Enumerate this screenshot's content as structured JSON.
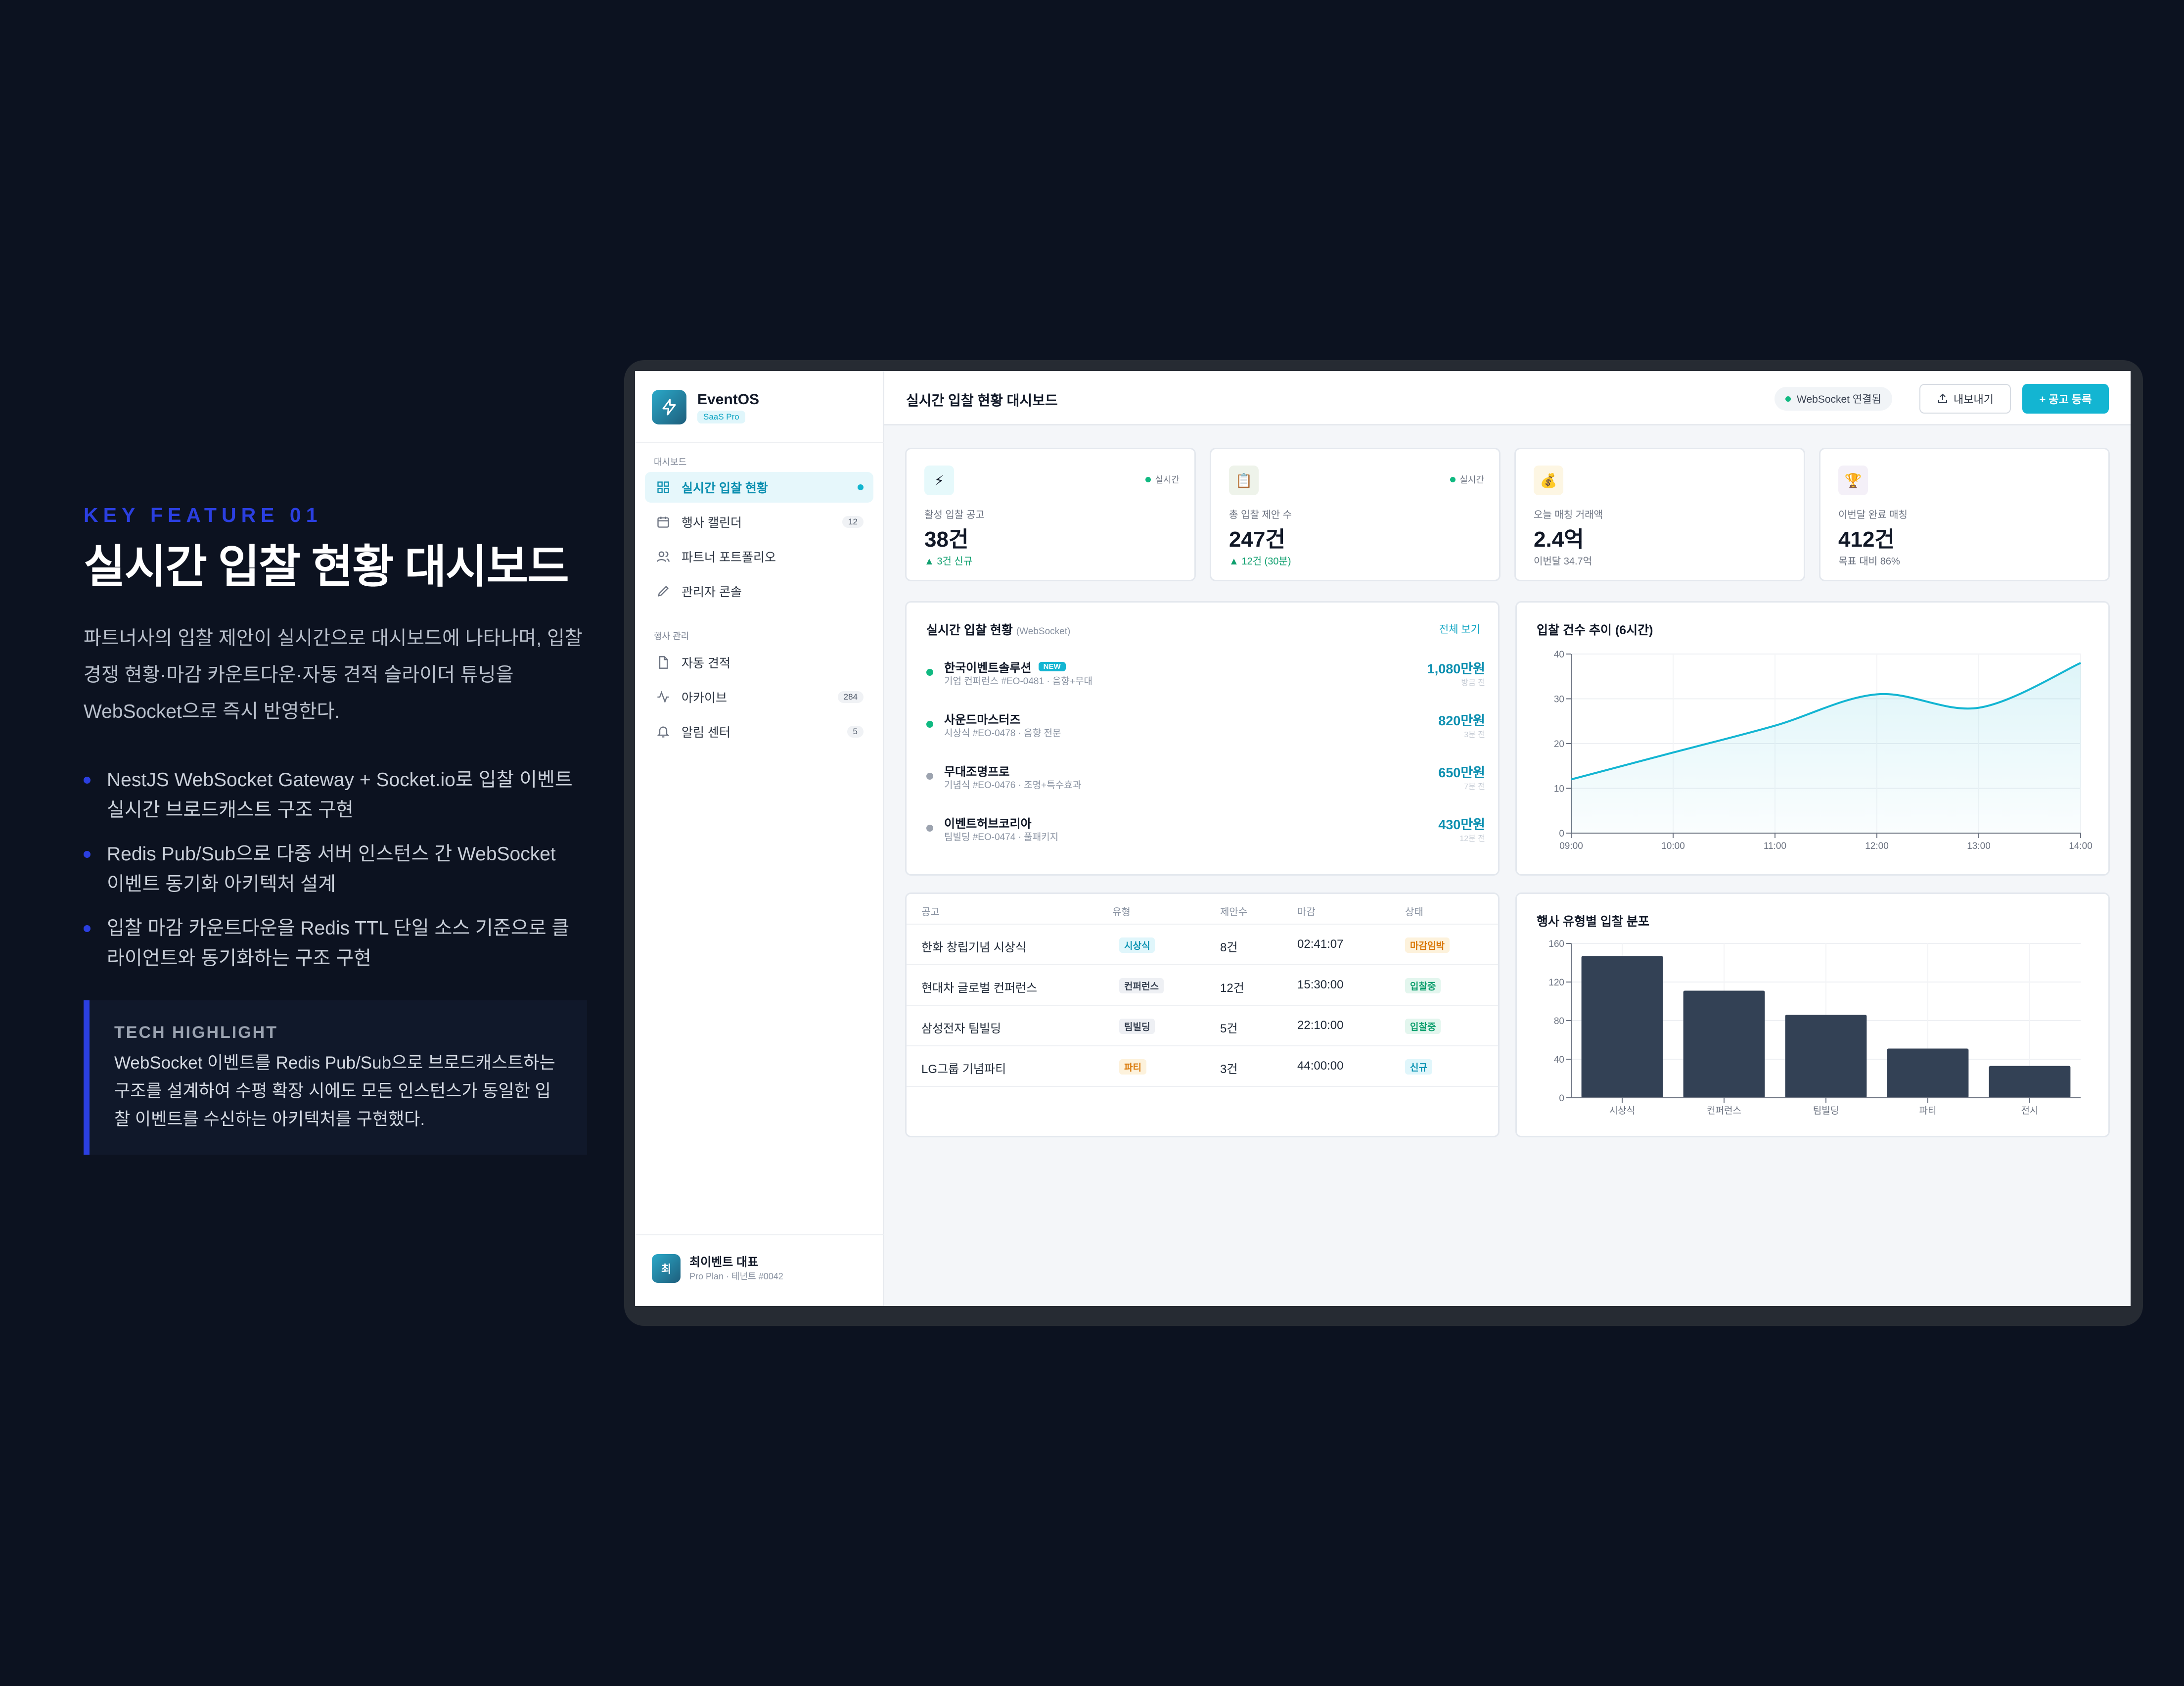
{
  "presentation": {
    "kicker": "KEY FEATURE 01",
    "title": "실시간 입찰 현황 대시보드",
    "description": "파트너사의 입찰 제안이 실시간으로 대시보드에 나타나며, 입찰 경쟁 현황·마감 카운트다운·자동 견적 슬라이더 튜닝을 WebSocket으로 즉시 반영한다.",
    "bullets": [
      "NestJS WebSocket Gateway + Socket.io로 입찰 이벤트 실시간 브로드캐스트 구조 구현",
      "Redis Pub/Sub으로 다중 서버 인스턴스 간 WebSocket 이벤트 동기화 아키텍처 설계",
      "입찰 마감 카운트다운을 Redis TTL 단일 소스 기준으로 클라이언트와 동기화하는 구조 구현"
    ],
    "highlight": {
      "title": "TECH HIGHLIGHT",
      "text": "WebSocket 이벤트를 Redis Pub/Sub으로 브로드캐스트하는 구조를 설계하여 수평 확장 시에도 모든 인스턴스가 동일한 입찰 이벤트를 수신하는 아키텍처를 구현했다."
    }
  },
  "app": {
    "name": "EventOS",
    "plan_badge": "SaaS Pro",
    "sidebar": {
      "section1": "대시보드",
      "section2": "행사 관리",
      "items": [
        {
          "label": "실시간 입찰 현황",
          "icon": "grid-icon",
          "active": true
        },
        {
          "label": "행사 캘린더",
          "icon": "calendar-icon",
          "count": "12"
        },
        {
          "label": "파트너 포트폴리오",
          "icon": "users-icon"
        },
        {
          "label": "관리자 콘솔",
          "icon": "pen-icon"
        },
        {
          "label": "자동 견적",
          "icon": "file-icon"
        },
        {
          "label": "아카이브",
          "icon": "activity-icon",
          "count": "284"
        },
        {
          "label": "알림 센터",
          "icon": "bell-icon",
          "count": "5"
        }
      ]
    },
    "user": {
      "avatar": "최",
      "name": "최이벤트 대표",
      "plan": "Pro Plan · 테넌트 #0042"
    },
    "header": {
      "title": "실시간 입찰 현황 대시보드",
      "ws_status": "WebSocket 연결됨",
      "export": "내보내기",
      "new": "+ 공고 등록"
    },
    "stats": [
      {
        "icon": "⚡",
        "live": "실시간",
        "label": "활성 입찰 공고",
        "value": "38건",
        "sub": "▲ 3건 신규",
        "up": true,
        "bg": "#e6f9fb"
      },
      {
        "icon": "📋",
        "live": "실시간",
        "label": "총 입찰 제안 수",
        "value": "247건",
        "sub": "▲ 12건 (30분)",
        "up": true,
        "bg": "#eef3ea"
      },
      {
        "icon": "💰",
        "live": "",
        "label": "오늘 매칭 거래액",
        "value": "2.4억",
        "sub": "이번달 34.7억",
        "up": false,
        "bg": "#fdf6e3"
      },
      {
        "icon": "🏆",
        "live": "",
        "label": "이번달 완료 매칭",
        "value": "412건",
        "sub": "목표 대비 86%",
        "up": false,
        "bg": "#f4f0f8"
      }
    ],
    "bids": {
      "title": "실시간 입찰 현황",
      "title_sub": "(WebSocket)",
      "see_all": "전체 보기",
      "items": [
        {
          "name": "한국이벤트솔루션",
          "new": "NEW",
          "desc": "기업 컨퍼런스 #EO-0481 · 음향+무대",
          "amount": "1,080만원",
          "time": "방금 전",
          "color": "#10b981"
        },
        {
          "name": "사운드마스터즈",
          "new": "",
          "desc": "시상식 #EO-0478 · 음향 전문",
          "amount": "820만원",
          "time": "3분 전",
          "color": "#10b981"
        },
        {
          "name": "무대조명프로",
          "new": "",
          "desc": "기념식 #EO-0476 · 조명+특수효과",
          "amount": "650만원",
          "time": "7분 전",
          "color": "#9ca3af"
        },
        {
          "name": "이벤트허브코리아",
          "new": "",
          "desc": "팀빌딩 #EO-0474 · 풀패키지",
          "amount": "430만원",
          "time": "12분 전",
          "color": "#9ca3af"
        }
      ]
    },
    "table": {
      "headers": [
        "공고",
        "유형",
        "제안수",
        "마감",
        "상태"
      ],
      "rows": [
        {
          "name": "한화 창립기념 시상식",
          "type": "시상식",
          "tc": "#0a93b3",
          "tb": "#e0f6fb",
          "count": "8건",
          "deadline": "02:41:07",
          "status": "마감임박",
          "sc": "#d97706",
          "sb": "#fdf2dc"
        },
        {
          "name": "현대차 글로벌 컨퍼런스",
          "type": "컨퍼런스",
          "tc": "#374151",
          "tb": "#eef0f4",
          "count": "12건",
          "deadline": "15:30:00",
          "status": "입찰중",
          "sc": "#0e9f6e",
          "sb": "#e3f6ee"
        },
        {
          "name": "삼성전자 팀빌딩",
          "type": "팀빌딩",
          "tc": "#374151",
          "tb": "#eef0f4",
          "count": "5건",
          "deadline": "22:10:00",
          "status": "입찰중",
          "sc": "#0e9f6e",
          "sb": "#e3f6ee"
        },
        {
          "name": "LG그룹 기념파티",
          "type": "파티",
          "tc": "#d97706",
          "tb": "#fdf2dc",
          "count": "3건",
          "deadline": "44:00:00",
          "status": "신규",
          "sc": "#0a93b3",
          "sb": "#e0f6fb"
        }
      ]
    },
    "line_title": "입찰 건수 추이 (6시간)",
    "bar_title": "행사 유형별 입찰 분포"
  },
  "chart_data": [
    {
      "type": "line",
      "title": "입찰 건수 추이 (6시간)",
      "x": [
        "09:00",
        "10:00",
        "11:00",
        "12:00",
        "13:00",
        "14:00"
      ],
      "values": [
        12,
        18,
        24,
        31,
        28,
        38
      ],
      "ylim": [
        0,
        40
      ],
      "yticks": [
        0,
        10,
        20,
        30,
        40
      ],
      "color": "#13b5d2",
      "grid": true
    },
    {
      "type": "bar",
      "title": "행사 유형별 입찰 분포",
      "categories": [
        "시상식",
        "컨퍼런스",
        "팀빌딩",
        "파티",
        "전시"
      ],
      "values": [
        147,
        111,
        86,
        51,
        33
      ],
      "ylim": [
        0,
        160
      ],
      "yticks": [
        0,
        40,
        80,
        120,
        160
      ],
      "color": "#334155",
      "grid": true
    }
  ]
}
